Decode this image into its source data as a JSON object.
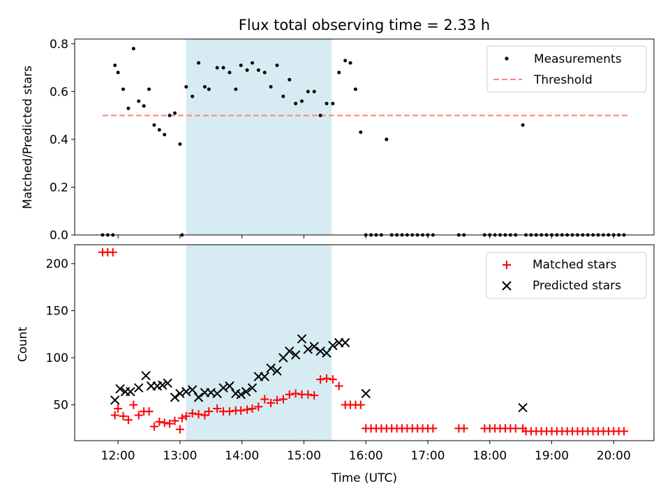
{
  "chart_data": [
    {
      "type": "scatter",
      "title": "Flux total observing time = 2.33 h",
      "xlabel": "",
      "ylabel": "Matched/Predicted stars",
      "xlim_hours": [
        11.3,
        20.65
      ],
      "ylim": [
        0,
        0.82
      ],
      "y_ticks": [
        0.0,
        0.2,
        0.4,
        0.6,
        0.8
      ],
      "y_tick_labels": [
        "0.0",
        "0.2",
        "0.4",
        "0.6",
        "0.8"
      ],
      "highlight_span": {
        "start": "13:06",
        "end": "15:27",
        "color": "#add8e6"
      },
      "legend": {
        "position": "upper right",
        "entries": [
          "Measurements",
          "Threshold"
        ]
      },
      "threshold": {
        "name": "Threshold",
        "value": 0.5,
        "x_range": [
          "11:45",
          "20:15"
        ],
        "color": "#ff7f7f",
        "style": "dashed"
      },
      "series": [
        {
          "name": "Measurements",
          "marker": "dot",
          "color": "#000000",
          "x": [
            "11:45",
            "11:50",
            "11:55",
            "11:57",
            "12:00",
            "12:05",
            "12:10",
            "12:15",
            "12:20",
            "12:25",
            "12:30",
            "12:35",
            "12:40",
            "12:45",
            "12:50",
            "12:55",
            "13:00",
            "13:02",
            "13:06",
            "13:12",
            "13:18",
            "13:24",
            "13:28",
            "13:36",
            "13:42",
            "13:48",
            "13:54",
            "13:59",
            "14:05",
            "14:10",
            "14:16",
            "14:22",
            "14:28",
            "14:34",
            "14:40",
            "14:46",
            "14:52",
            "14:58",
            "15:04",
            "15:10",
            "15:16",
            "15:22",
            "15:28",
            "15:34",
            "15:40",
            "15:45",
            "15:50",
            "15:55",
            "16:00",
            "16:05",
            "16:10",
            "16:15",
            "16:20",
            "16:25",
            "16:30",
            "16:35",
            "16:40",
            "16:45",
            "16:50",
            "16:55",
            "17:00",
            "17:05",
            "17:30",
            "17:35",
            "17:55",
            "18:00",
            "18:05",
            "18:10",
            "18:15",
            "18:20",
            "18:25",
            "18:32",
            "18:35",
            "18:40",
            "18:45",
            "18:50",
            "18:55",
            "19:00",
            "19:05",
            "19:10",
            "19:15",
            "19:20",
            "19:25",
            "19:30",
            "19:35",
            "19:40",
            "19:45",
            "19:50",
            "19:55",
            "20:00",
            "20:05",
            "20:10"
          ],
          "y": [
            0,
            0,
            0,
            0.71,
            0.68,
            0.61,
            0.53,
            0.78,
            0.56,
            0.54,
            0.61,
            0.46,
            0.44,
            0.42,
            0.5,
            0.51,
            0.38,
            0,
            0.62,
            0.58,
            0.72,
            0.62,
            0.61,
            0.7,
            0.7,
            0.68,
            0.61,
            0.71,
            0.69,
            0.72,
            0.69,
            0.68,
            0.62,
            0.71,
            0.58,
            0.65,
            0.55,
            0.56,
            0.6,
            0.6,
            0.5,
            0.55,
            0.55,
            0.68,
            0.73,
            0.72,
            0.61,
            0.43,
            0,
            0,
            0,
            0,
            0.4,
            0,
            0,
            0,
            0,
            0,
            0,
            0,
            0,
            0,
            0,
            0,
            0,
            0,
            0,
            0,
            0,
            0,
            0,
            0.46,
            0,
            0,
            0,
            0,
            0,
            0,
            0,
            0,
            0,
            0,
            0,
            0,
            0,
            0,
            0,
            0,
            0,
            0,
            0,
            0
          ]
        }
      ]
    },
    {
      "type": "scatter",
      "title": "",
      "xlabel": "Time (UTC)",
      "ylabel": "Count",
      "xlim_hours": [
        11.3,
        20.65
      ],
      "ylim": [
        12,
        220
      ],
      "y_ticks": [
        50,
        100,
        150,
        200
      ],
      "y_tick_labels": [
        "50",
        "100",
        "150",
        "200"
      ],
      "x_ticks": [
        "12:00",
        "13:00",
        "14:00",
        "15:00",
        "16:00",
        "17:00",
        "18:00",
        "19:00",
        "20:00"
      ],
      "x_tick_labels": [
        "12:00",
        "13:00",
        "14:00",
        "15:00",
        "16:00",
        "17:00",
        "18:00",
        "19:00",
        "20:00"
      ],
      "highlight_span": {
        "start": "13:06",
        "end": "15:27",
        "color": "#add8e6"
      },
      "legend": {
        "position": "upper right",
        "entries": [
          "Matched stars",
          "Predicted stars"
        ]
      },
      "series": [
        {
          "name": "Matched stars",
          "marker": "plus",
          "color": "#ff0000",
          "x": [
            "11:45",
            "11:50",
            "11:55",
            "11:57",
            "12:00",
            "12:05",
            "12:10",
            "12:15",
            "12:20",
            "12:25",
            "12:30",
            "12:35",
            "12:40",
            "12:45",
            "12:50",
            "12:55",
            "13:00",
            "13:02",
            "13:06",
            "13:12",
            "13:18",
            "13:24",
            "13:28",
            "13:36",
            "13:42",
            "13:48",
            "13:54",
            "13:59",
            "14:05",
            "14:10",
            "14:16",
            "14:22",
            "14:28",
            "14:34",
            "14:40",
            "14:46",
            "14:52",
            "14:58",
            "15:04",
            "15:10",
            "15:16",
            "15:22",
            "15:28",
            "15:34",
            "15:40",
            "15:45",
            "15:50",
            "15:55",
            "16:00",
            "16:05",
            "16:10",
            "16:15",
            "16:20",
            "16:25",
            "16:30",
            "16:35",
            "16:40",
            "16:45",
            "16:50",
            "16:55",
            "17:00",
            "17:05",
            "17:30",
            "17:35",
            "17:55",
            "18:00",
            "18:05",
            "18:10",
            "18:15",
            "18:20",
            "18:25",
            "18:32",
            "18:35",
            "18:40",
            "18:45",
            "18:50",
            "18:55",
            "19:00",
            "19:05",
            "19:10",
            "19:15",
            "19:20",
            "19:25",
            "19:30",
            "19:35",
            "19:40",
            "19:45",
            "19:50",
            "19:55",
            "20:00",
            "20:05",
            "20:10"
          ],
          "y": [
            212,
            212,
            212,
            39,
            46,
            38,
            34,
            50,
            39,
            43,
            43,
            27,
            32,
            31,
            30,
            33,
            24,
            36,
            38,
            41,
            40,
            39,
            43,
            46,
            43,
            43,
            44,
            44,
            45,
            46,
            48,
            56,
            52,
            55,
            56,
            61,
            62,
            61,
            61,
            60,
            77,
            78,
            77,
            70,
            50,
            50,
            50,
            50,
            25,
            25,
            25,
            25,
            25,
            25,
            25,
            25,
            25,
            25,
            25,
            25,
            25,
            25,
            25,
            25,
            25,
            25,
            25,
            25,
            25,
            25,
            25,
            25,
            22,
            22,
            22,
            22,
            22,
            22,
            22,
            22,
            22,
            22,
            22,
            22,
            22,
            22,
            22,
            22,
            22,
            22,
            22,
            22
          ]
        },
        {
          "name": "Predicted stars",
          "marker": "x",
          "color": "#000000",
          "x": [
            "11:57",
            "12:02",
            "12:07",
            "12:12",
            "12:20",
            "12:27",
            "12:32",
            "12:38",
            "12:43",
            "12:48",
            "12:55",
            "13:00",
            "13:06",
            "13:12",
            "13:18",
            "13:24",
            "13:30",
            "13:36",
            "13:42",
            "13:48",
            "13:54",
            "13:59",
            "14:04",
            "14:10",
            "14:16",
            "14:22",
            "14:28",
            "14:34",
            "14:40",
            "14:46",
            "14:52",
            "14:58",
            "15:04",
            "15:10",
            "15:16",
            "15:22",
            "15:28",
            "15:34",
            "15:40",
            "16:00",
            "18:32"
          ],
          "y": [
            55,
            67,
            64,
            64,
            68,
            81,
            70,
            70,
            71,
            73,
            58,
            62,
            64,
            66,
            58,
            63,
            63,
            62,
            68,
            70,
            62,
            61,
            64,
            68,
            80,
            80,
            89,
            86,
            100,
            107,
            103,
            120,
            109,
            112,
            107,
            105,
            113,
            116,
            116,
            62,
            47
          ]
        }
      ]
    }
  ]
}
